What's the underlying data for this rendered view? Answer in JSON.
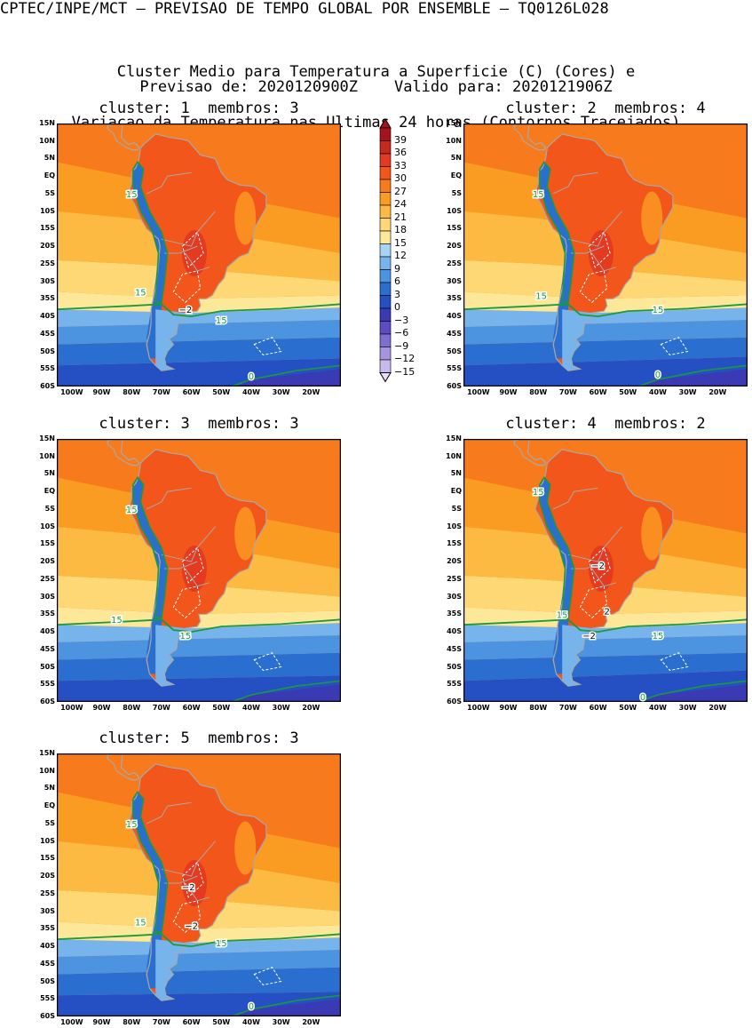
{
  "header": {
    "line1": "CPTEC/INPE/MCT – PREVISAO DE TEMPO GLOBAL POR ENSEMBLE – TQ0126L028",
    "line2": "Cluster Medio para Temperatura a Superficie (C) (Cores) e",
    "line3": "Variacao da Temperatura nas Ultimas 24 horas (Contornos Tracejados)",
    "line4": "Previsao de: 2020120900Z    Valido para: 2020121906Z"
  },
  "panels": [
    {
      "title": "cluster: 1  membros: 3",
      "labels": [
        "15",
        "15",
        "15",
        "−2",
        "0"
      ]
    },
    {
      "title": "cluster: 2  membros: 4",
      "labels": [
        "15",
        "15",
        "15",
        "0"
      ]
    },
    {
      "title": "cluster: 3  membros: 3",
      "labels": [
        "15",
        "15",
        "15"
      ]
    },
    {
      "title": "cluster: 4  membros: 2",
      "labels": [
        "15",
        "15",
        "15",
        "−2",
        "2",
        "−2",
        "0"
      ]
    },
    {
      "title": "cluster: 5  membros: 3",
      "labels": [
        "15",
        "15",
        "15",
        "−2",
        "−2",
        "0"
      ]
    }
  ],
  "y_axis_labels": [
    "15N",
    "10N",
    "5N",
    "EQ",
    "5S",
    "10S",
    "15S",
    "20S",
    "25S",
    "30S",
    "35S",
    "40S",
    "45S",
    "50S",
    "55S",
    "60S"
  ],
  "x_axis_labels": [
    "100W",
    "90W",
    "80W",
    "70W",
    "60W",
    "50W",
    "40W",
    "30W",
    "20W"
  ],
  "colorbar": {
    "labels": [
      "39",
      "36",
      "33",
      "30",
      "27",
      "24",
      "21",
      "18",
      "15",
      "12",
      "9",
      "6",
      "3",
      "0",
      "−3",
      "−6",
      "−9",
      "−12",
      "−15"
    ],
    "colors": [
      "#a4141e",
      "#c42a20",
      "#e43a20",
      "#f2561a",
      "#f77a1c",
      "#fb9c22",
      "#fdba42",
      "#fdd874",
      "#fde89a",
      "#a8d4f4",
      "#78b4ec",
      "#4c94e0",
      "#2a6ed0",
      "#2450c4",
      "#3a3ab4",
      "#5c4cc2",
      "#7e6ed0",
      "#a694de",
      "#c8baec"
    ]
  },
  "colors": {
    "land_outline": "#a8a8a8",
    "contour_15": "#1a9a3a",
    "dashed_contour": "#ffffff"
  }
}
